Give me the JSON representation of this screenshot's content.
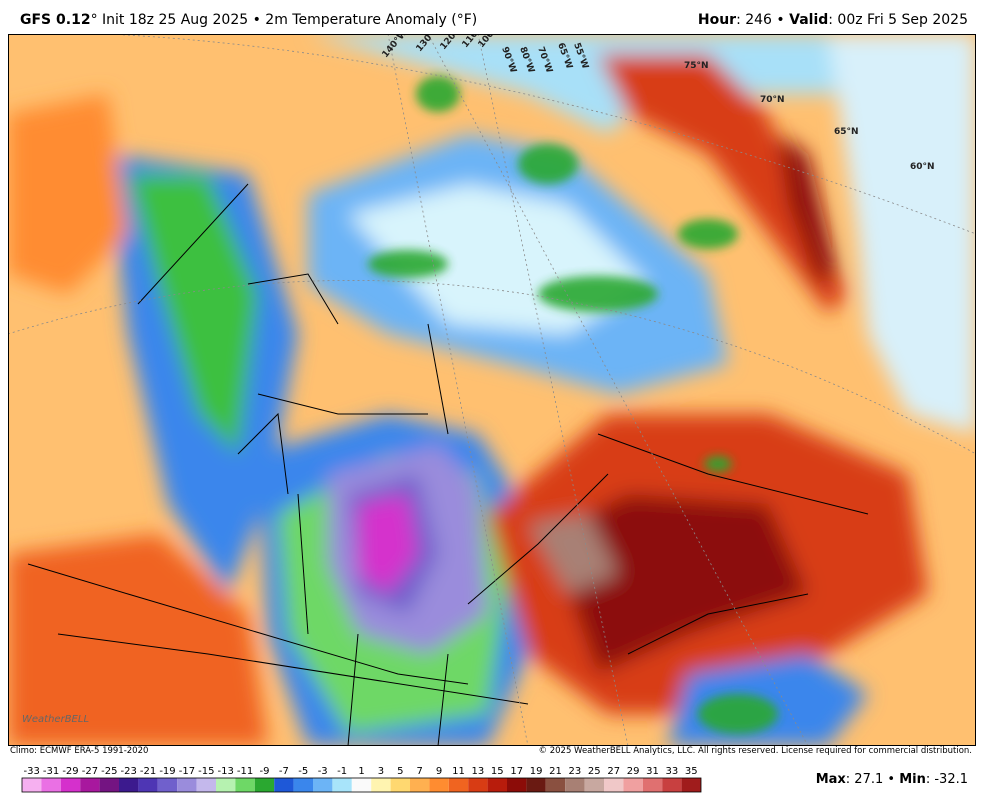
{
  "header": {
    "model": "GFS 0.12",
    "init": "° Init 18z 25 Aug 2025 • 2m Temperature Anomaly (°F)",
    "hour_label": "Hour",
    "hour": ": 246 • ",
    "valid_label": "Valid",
    "valid": ": 00z Fri 5 Sep 2025"
  },
  "map": {
    "longitudes": [
      "140°W",
      "130°W",
      "120°W",
      "110°W",
      "100°W",
      "90°W",
      "80°W",
      "70°W",
      "65°W",
      "55°W"
    ],
    "latitudes": [
      "75°N",
      "70°N",
      "65°N",
      "60°N"
    ],
    "logo": "WeatherBELL"
  },
  "footer": {
    "climo": "Climo: ECMWF ERA-5 1991-2020",
    "copyright": "© 2025 WeatherBELL Analytics, LLC. All rights reserved. License required for commercial distribution."
  },
  "colorbar": {
    "labels": [
      -33,
      -31,
      -29,
      -27,
      -25,
      -23,
      -21,
      -19,
      -17,
      -15,
      -13,
      -11,
      -9,
      -7,
      -5,
      -3,
      -1,
      1,
      3,
      5,
      7,
      9,
      11,
      13,
      15,
      17,
      19,
      21,
      23,
      25,
      27,
      29,
      31,
      33,
      35
    ],
    "colors": [
      "#f6b0f0",
      "#ea70e4",
      "#d530cc",
      "#a8189e",
      "#741482",
      "#3c1a8e",
      "#4e36b4",
      "#7060cc",
      "#9a8cdc",
      "#c4b8ec",
      "#b6f2b0",
      "#6ed866",
      "#2aa830",
      "#1e58d8",
      "#3a86ec",
      "#6cb4f6",
      "#a8e4fa",
      "#fafafa",
      "#fff4b0",
      "#ffd870",
      "#ffb050",
      "#ff8c30",
      "#f06420",
      "#d83c14",
      "#b81c0c",
      "#8c0c08",
      "#6a1a12",
      "#8a5040",
      "#a88074",
      "#c8a8a0",
      "#f0c8c8",
      "#f0a0a0",
      "#e07070",
      "#c84040",
      "#a01c1c"
    ]
  },
  "stats": {
    "max_label": "Max",
    "max": ": 27.1 • ",
    "min_label": "Min",
    "min": ": -32.1"
  }
}
